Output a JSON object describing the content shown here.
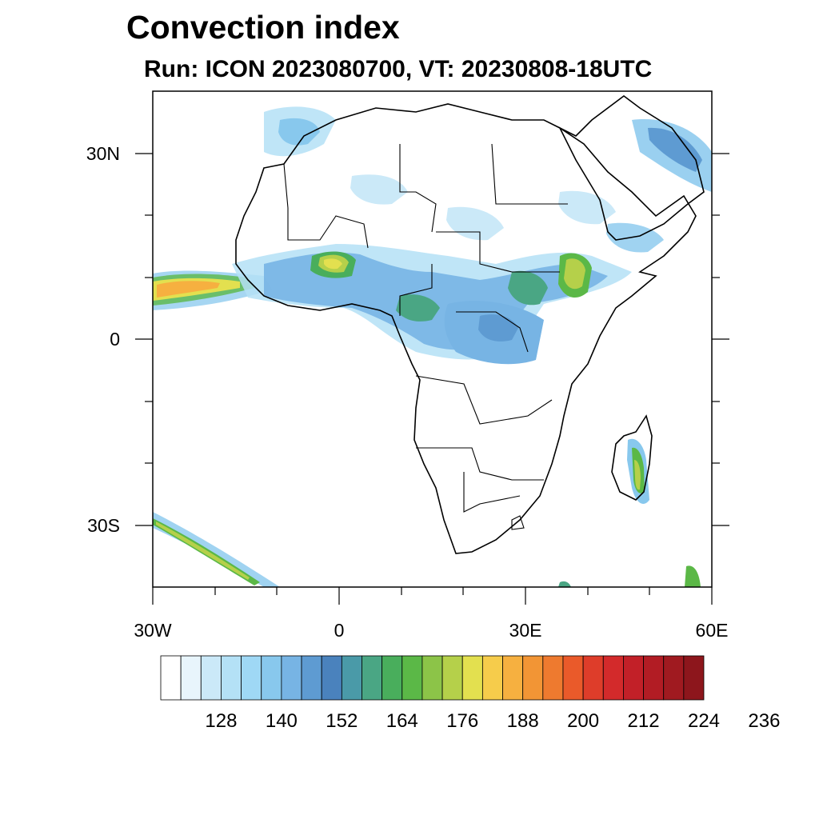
{
  "title": "Convection index",
  "subtitle": "Run: ICON 2023080700,  VT: 20230808-18UTC",
  "lat_labels": [
    "30N",
    "0",
    "30S"
  ],
  "lon_labels": [
    "30W",
    "0",
    "30E",
    "60E"
  ],
  "colorbar": {
    "colors": [
      "#ffffff",
      "#e8f5fc",
      "#cbe9f8",
      "#b4e1f6",
      "#9fd8f5",
      "#88c8ed",
      "#77b4e4",
      "#5e9bd2",
      "#4a82bd",
      "#4a9aa8",
      "#4aa684",
      "#49ae5c",
      "#5bb847",
      "#8cc448",
      "#b5d04a",
      "#e3e04f",
      "#f6cc4b",
      "#f6b040",
      "#f29535",
      "#ee7a2f",
      "#ea5a2a",
      "#de3d2a",
      "#d32a2b",
      "#c22028",
      "#b21c24",
      "#a01a20",
      "#8d161c"
    ],
    "tick_labels": [
      "128",
      "140",
      "152",
      "164",
      "176",
      "188",
      "200",
      "212",
      "224",
      "236"
    ]
  },
  "map": {
    "lon_range": [
      -30,
      60
    ],
    "lat_range": [
      -40,
      40
    ],
    "coastline_color": "#000000"
  }
}
